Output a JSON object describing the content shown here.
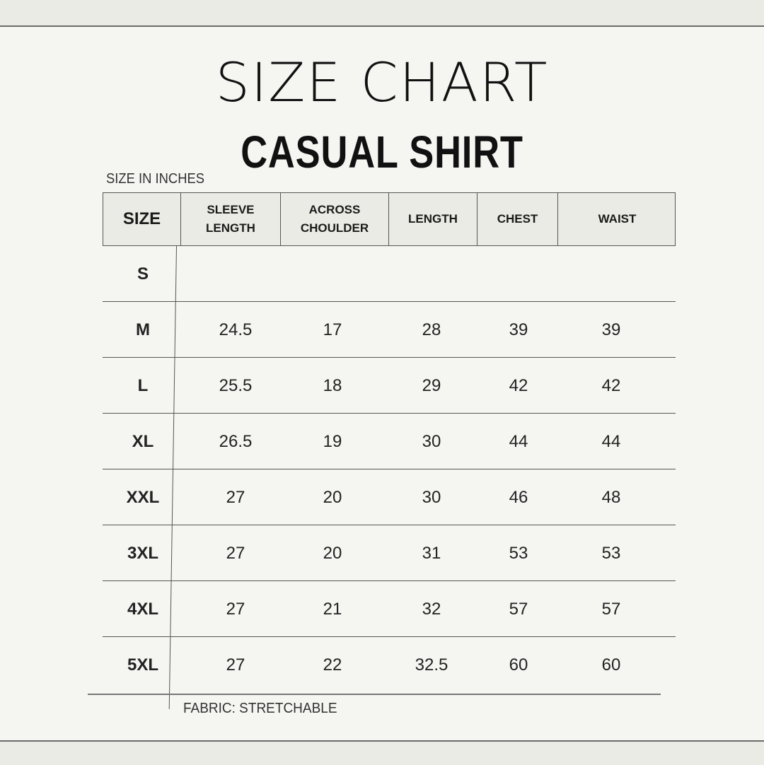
{
  "title": "SIZE CHART",
  "subtitle": "CASUAL SHIRT",
  "units_note": "SIZE IN INCHES",
  "footer_note": "FABRIC: STRETCHABLE",
  "colors": {
    "background": "#f5f5f2",
    "header_fill": "#ebebe5",
    "text": "#1a1a1a"
  },
  "table": {
    "headers": [
      "SIZE",
      "SLEEVE\nLENGTH",
      "ACROSS\nCHOULDER",
      "LENGTH",
      "CHEST",
      "WAIST"
    ],
    "rows": [
      [
        "S",
        "",
        "",
        "",
        "",
        ""
      ],
      [
        "M",
        "24.5",
        "17",
        "28",
        "39",
        "39"
      ],
      [
        "L",
        "25.5",
        "18",
        "29",
        "42",
        "42"
      ],
      [
        "XL",
        "26.5",
        "19",
        "30",
        "44",
        "44"
      ],
      [
        "XXL",
        "27",
        "20",
        "30",
        "46",
        "48"
      ],
      [
        "3XL",
        "27",
        "20",
        "31",
        "53",
        "53"
      ],
      [
        "4XL",
        "27",
        "21",
        "32",
        "57",
        "57"
      ],
      [
        "5XL",
        "27",
        "22",
        "32.5",
        "60",
        "60"
      ]
    ]
  }
}
